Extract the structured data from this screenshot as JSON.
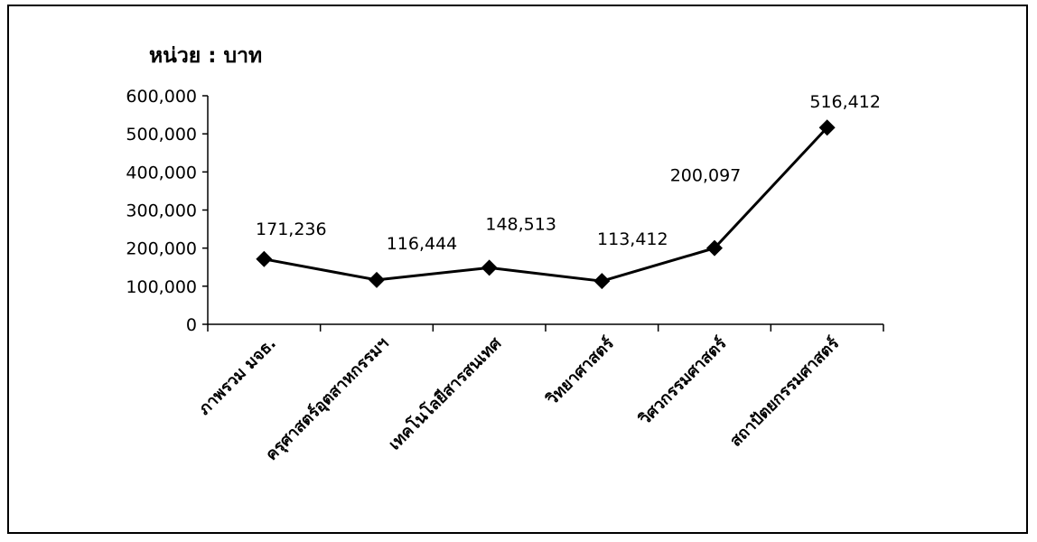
{
  "chart_data": {
    "type": "line",
    "unit_label": "หน่วย : บาท",
    "categories": [
      "ภาพรวม มจธ.",
      "ครุศาสตร์อุตสาหกรรมฯ",
      "เทคโนโลยีสารสนเทศ",
      "วิทยาศาสตร์",
      "วิศวกรรมศาสตร์",
      "สถาปัตยกรรมศาสตร์"
    ],
    "values": [
      171236,
      116444,
      148513,
      113412,
      200097,
      516412
    ],
    "data_labels": [
      "171,236",
      "116,444",
      "148,513",
      "113,412",
      "200,097",
      "516,412"
    ],
    "y_ticks": [
      "0",
      "100,000",
      "200,000",
      "300,000",
      "400,000",
      "500,000",
      "600,000"
    ],
    "ylim": [
      0,
      600000
    ],
    "grid": false,
    "legend": "none",
    "colors": {
      "line": "#000000",
      "marker": "#000000"
    },
    "marker": "diamond"
  }
}
